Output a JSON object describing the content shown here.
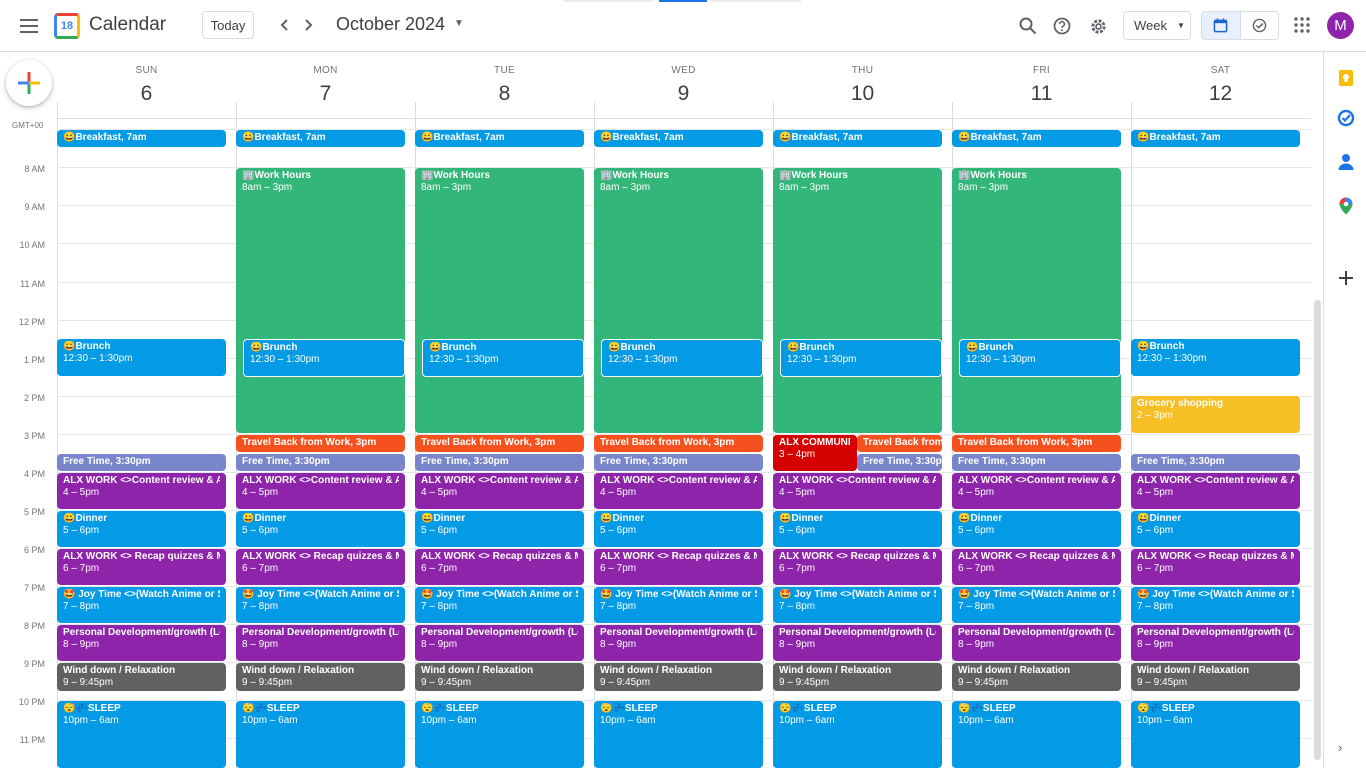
{
  "app": {
    "title": "Calendar",
    "logo_day": "18",
    "today_label": "Today",
    "month_title": "October 2024",
    "view_label": "Week",
    "avatar_letter": "M",
    "timezone": "GMT+00"
  },
  "colors": {
    "blue": "#039be5",
    "green": "#33b679",
    "purple": "#8e24aa",
    "lavender": "#7986cb",
    "graphite": "#616161",
    "orange": "#f4511e",
    "red": "#d50000",
    "yellow": "#f6bf26"
  },
  "days": [
    {
      "dow": "SUN",
      "num": "6"
    },
    {
      "dow": "MON",
      "num": "7"
    },
    {
      "dow": "TUE",
      "num": "8"
    },
    {
      "dow": "WED",
      "num": "9"
    },
    {
      "dow": "THU",
      "num": "10"
    },
    {
      "dow": "FRI",
      "num": "11"
    },
    {
      "dow": "SAT",
      "num": "12"
    }
  ],
  "hours": [
    "8 AM",
    "9 AM",
    "10 AM",
    "11 AM",
    "12 PM",
    "1 PM",
    "2 PM",
    "3 PM",
    "4 PM",
    "5 PM",
    "6 PM",
    "7 PM",
    "8 PM",
    "9 PM",
    "10 PM",
    "11 PM"
  ],
  "event_texts": {
    "breakfast": "😀Breakfast, 7am",
    "work_title": "🏢Work Hours",
    "work_time": "8am – 3pm",
    "brunch_title": "😀Brunch",
    "brunch_time": "12:30 – 1:30pm",
    "travel": "Travel Back from Work, 3pm",
    "travel_short": "Travel Back from W",
    "free": "Free Time, 3:30pm",
    "alx1_title": "ALX WORK <>Content review & Activities",
    "alx1_time": "4 – 5pm",
    "dinner_title": "😀Dinner",
    "dinner_time": "5 – 6pm",
    "alx2_title": "ALX WORK <> Recap quizzes & Milestones",
    "alx2_time": "6 – 7pm",
    "joy_title": "🤩 Joy Time <>(Watch Anime or Series)",
    "joy_time": "7 – 8pm",
    "pd_title": "Personal Development/growth (Learning)",
    "pd_time": "8 – 9pm",
    "wind_title": "Wind down / Relaxation",
    "wind_time": "9 – 9:45pm",
    "sleep_title": "😴💤SLEEP",
    "sleep_time": "10pm – 6am",
    "community_title": "ALX COMMUNITY",
    "community_time": "3 – 4pm",
    "grocery_title": "Grocery shopping",
    "grocery_time": "2 – 3pm"
  },
  "icons": {
    "menu": "menu-icon",
    "prev": "chevron-left-icon",
    "next": "chevron-right-icon",
    "search": "search-icon",
    "help": "help-icon",
    "settings": "gear-icon",
    "apps": "apps-grid-icon",
    "create": "plus-icon"
  }
}
